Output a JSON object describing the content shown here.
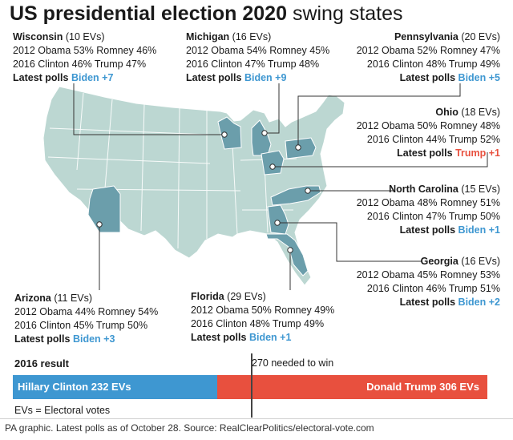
{
  "title": {
    "bold": "US presidential election 2020",
    "light": "swing states"
  },
  "colors": {
    "map_land": "#bcd7d2",
    "swing_state": "#6b9eab",
    "clinton_blue": "#3e97d1",
    "trump_red": "#e8503e"
  },
  "states": [
    {
      "name": "Wisconsin",
      "evs": "(10 EVs)",
      "line2012": "2012 Obama 53% Romney 46%",
      "line2016": "2016 Clinton 46% Trump 47%",
      "latest_label": "Latest polls",
      "latest_value": "Biden +7",
      "leader": "Biden"
    },
    {
      "name": "Michigan",
      "evs": "(16 EVs)",
      "line2012": "2012 Obama 54% Romney 45%",
      "line2016": "2016 Clinton 47% Trump 48%",
      "latest_label": "Latest polls",
      "latest_value": "Biden +9",
      "leader": "Biden"
    },
    {
      "name": "Pennsylvania",
      "evs": "(20 EVs)",
      "line2012": "2012 Obama 52% Romney 47%",
      "line2016": "2016 Clinton 48% Trump 49%",
      "latest_label": "Latest polls",
      "latest_value": "Biden +5",
      "leader": "Biden"
    },
    {
      "name": "Ohio",
      "evs": "(18 EVs)",
      "line2012": "2012 Obama 50% Romney 48%",
      "line2016": "2016 Clinton 44% Trump 52%",
      "latest_label": "Latest polls",
      "latest_value": "Trump +1",
      "leader": "Trump"
    },
    {
      "name": "North Carolina",
      "evs": "(15 EVs)",
      "line2012": "2012 Obama 48% Romney 51%",
      "line2016": "2016 Clinton 47% Trump 50%",
      "latest_label": "Latest polls",
      "latest_value": "Biden +1",
      "leader": "Biden"
    },
    {
      "name": "Georgia",
      "evs": "(16 EVs)",
      "line2012": "2012 Obama 45% Romney 53%",
      "line2016": "2016 Clinton 46% Trump 51%",
      "latest_label": "Latest polls",
      "latest_value": "Biden +2",
      "leader": "Biden"
    },
    {
      "name": "Florida",
      "evs": "(29 EVs)",
      "line2012": "2012 Obama 50% Romney 49%",
      "line2016": "2016 Clinton 48% Trump 49%",
      "latest_label": "Latest polls",
      "latest_value": "Biden +1",
      "leader": "Biden"
    },
    {
      "name": "Arizona",
      "evs": "(11 EVs)",
      "line2012": "2012 Obama 44% Romney 54%",
      "line2016": "2016 Clinton 45% Trump 50%",
      "latest_label": "Latest polls",
      "latest_value": "Biden +3",
      "leader": "Biden"
    }
  ],
  "result": {
    "label": "2016 result",
    "needed_label": "270 needed to win",
    "needed_value": 270,
    "total": 538,
    "clinton": {
      "label": "Hillary Clinton 232 EVs",
      "value": 232
    },
    "trump": {
      "label": "Donald Trump 306 EVs",
      "value": 306
    },
    "note": "EVs = Electoral votes"
  },
  "source": "PA graphic. Latest polls as of October 28. Source: RealClearPolitics/electoral-vote.com"
}
